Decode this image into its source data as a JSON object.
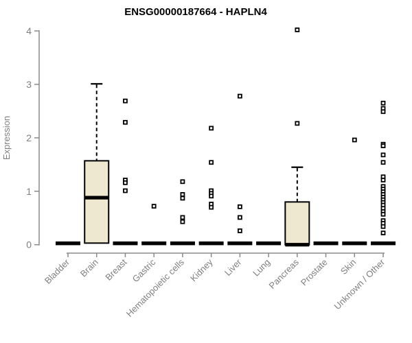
{
  "title": "ENSG00000187664 - HAPLN4",
  "chart_data": {
    "type": "boxplot",
    "title": "ENSG00000187664 - HAPLN4",
    "xlabel": "",
    "ylabel": "Expression",
    "ylim": [
      0,
      4
    ],
    "yticks": [
      "0",
      "1",
      "2",
      "3",
      "4"
    ],
    "grid": false,
    "legend": false,
    "categories": [
      "Bladder",
      "Brain",
      "Breast",
      "Gastric",
      "Hematopoietic cells",
      "Kidney",
      "Liver",
      "Lung",
      "Pancreas",
      "Prostate",
      "Skin",
      "Unknown / Other"
    ],
    "boxes": [
      {
        "category": "Bladder",
        "q1": 0,
        "median": 0,
        "q3": 0,
        "whisker_low": 0,
        "whisker_high": 0,
        "outliers": []
      },
      {
        "category": "Brain",
        "q1": 0.03,
        "median": 0.88,
        "q3": 1.57,
        "whisker_low": 0,
        "whisker_high": 3.01,
        "outliers": []
      },
      {
        "category": "Breast",
        "q1": 0,
        "median": 0,
        "q3": 0,
        "whisker_low": 0,
        "whisker_high": 0,
        "outliers": [
          2.69,
          2.29,
          1.21,
          1.16,
          1.01
        ]
      },
      {
        "category": "Gastric",
        "q1": 0,
        "median": 0,
        "q3": 0,
        "whisker_low": 0,
        "whisker_high": 0,
        "outliers": [
          0.72
        ]
      },
      {
        "category": "Hematopoietic cells",
        "q1": 0,
        "median": 0,
        "q3": 0,
        "whisker_low": 0,
        "whisker_high": 0,
        "outliers": [
          1.18,
          0.94,
          0.87,
          0.51,
          0.43
        ]
      },
      {
        "category": "Kidney",
        "q1": 0,
        "median": 0,
        "q3": 0,
        "whisker_low": 0,
        "whisker_high": 0,
        "outliers": [
          2.18,
          1.54,
          1.01,
          0.96,
          0.91,
          0.76,
          0.7
        ]
      },
      {
        "category": "Liver",
        "q1": 0,
        "median": 0,
        "q3": 0,
        "whisker_low": 0,
        "whisker_high": 0,
        "outliers": [
          2.78,
          0.71,
          0.51,
          0.26
        ]
      },
      {
        "category": "Lung",
        "q1": 0,
        "median": 0,
        "q3": 0,
        "whisker_low": 0,
        "whisker_high": 0,
        "outliers": []
      },
      {
        "category": "Pancreas",
        "q1": 0,
        "median": 0,
        "q3": 0.8,
        "whisker_low": 0,
        "whisker_high": 1.45,
        "outliers": [
          4.02,
          2.27
        ]
      },
      {
        "category": "Prostate",
        "q1": 0,
        "median": 0,
        "q3": 0,
        "whisker_low": 0,
        "whisker_high": 0,
        "outliers": []
      },
      {
        "category": "Skin",
        "q1": 0,
        "median": 0,
        "q3": 0,
        "whisker_low": 0,
        "whisker_high": 0,
        "outliers": [
          1.96
        ]
      },
      {
        "category": "Unknown / Other",
        "q1": 0,
        "median": 0,
        "q3": 0,
        "whisker_low": 0,
        "whisker_high": 0,
        "outliers": [
          2.65,
          2.55,
          2.49,
          1.88,
          1.85,
          1.68,
          1.54,
          1.27,
          1.21,
          1.09,
          1.04,
          0.99,
          0.94,
          0.89,
          0.84,
          0.79,
          0.74,
          0.68,
          0.62,
          0.57,
          0.45,
          0.4,
          0.34,
          0.22
        ]
      }
    ],
    "colors": {
      "box_fill": "#ede8cf",
      "box_stroke": "#000000",
      "median": "#000000",
      "axis_line": "#8a8a8a",
      "tick_text": "#7f7f7f",
      "title_text": "#000000",
      "background": "#ffffff"
    }
  }
}
